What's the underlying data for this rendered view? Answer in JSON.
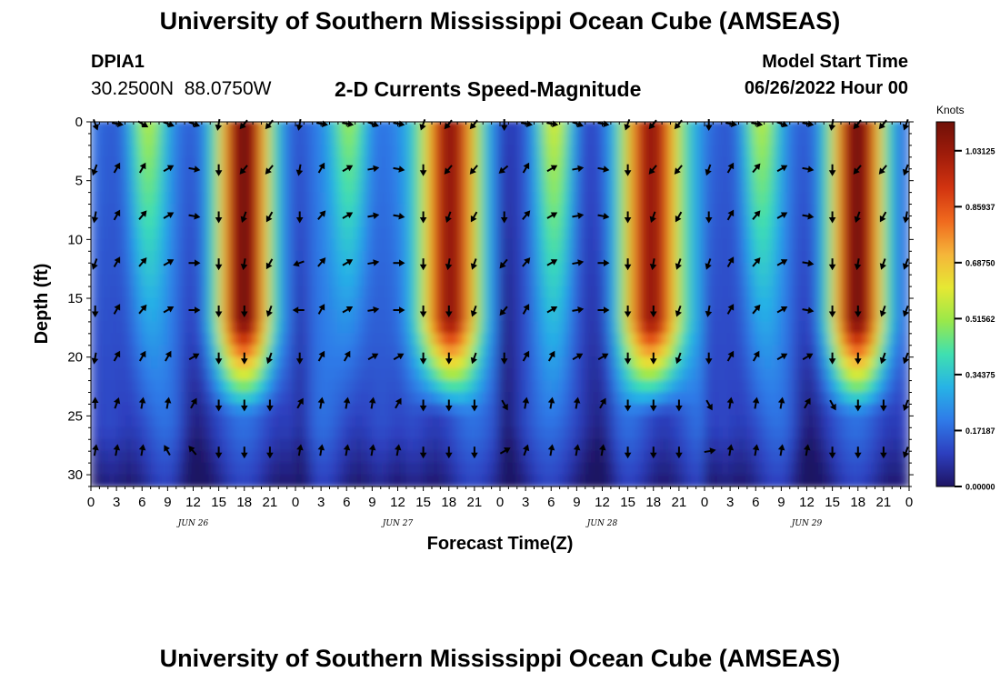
{
  "header": {
    "title": "University of Southern Mississippi Ocean Cube (AMSEAS)",
    "station_name": "DPIA1",
    "station_coords": "30.2500N  88.0750W",
    "plot_title": "2-D Currents Speed-Magnitude",
    "model_start_label": "Model Start Time",
    "model_start_value": "06/26/2022 Hour 00",
    "second_title": "University of Southern Mississippi Ocean Cube (AMSEAS)"
  },
  "colors": {
    "colormap": [
      "#1e1463",
      "#2d3fbf",
      "#2f7be8",
      "#27b3e6",
      "#3fe0b0",
      "#9ae84a",
      "#e6e833",
      "#f5b53a",
      "#f06a1e",
      "#d23410",
      "#a01c0a",
      "#701008"
    ]
  },
  "chart_data": {
    "type": "heatmap",
    "title": "2-D Currents Speed-Magnitude",
    "xlabel": "Forecast Time(Z)",
    "ylabel": "Depth (ft)",
    "x_ticks": [
      "0",
      "3",
      "6",
      "9",
      "12",
      "15",
      "18",
      "21",
      "0",
      "3",
      "6",
      "9",
      "12",
      "15",
      "18",
      "21",
      "0",
      "3",
      "6",
      "9",
      "12",
      "15",
      "18",
      "21",
      "0",
      "3",
      "6",
      "9",
      "12",
      "15",
      "18",
      "21",
      "0"
    ],
    "x_range_hours": [
      0,
      96
    ],
    "date_labels": [
      {
        "label": "JUN 26",
        "hour": 12
      },
      {
        "label": "JUN 27",
        "hour": 36
      },
      {
        "label": "JUN 28",
        "hour": 60
      },
      {
        "label": "JUN 29",
        "hour": 84
      }
    ],
    "y_ticks": [
      "0",
      "5",
      "10",
      "15",
      "20",
      "25",
      "30"
    ],
    "y_range_ft": [
      0,
      31
    ],
    "colorbar": {
      "label": "Knots",
      "min": 0.0,
      "max": 1.12,
      "ticks": [
        "0.00000",
        "0.17187",
        "0.34375",
        "0.51562",
        "0.68750",
        "0.85937",
        "1.03125"
      ]
    },
    "depth_levels_ft": [
      0,
      4,
      8,
      12,
      16,
      20,
      24,
      28
    ],
    "arrow_hours": [
      0.5,
      3,
      6,
      9,
      12,
      15,
      18,
      21,
      24.5,
      27,
      30,
      33,
      36,
      39,
      42,
      45,
      48.5,
      51,
      54,
      57,
      60,
      63,
      66,
      69,
      72.5,
      75,
      78,
      81,
      84,
      87,
      90,
      93,
      96
    ],
    "arrow_directions_deg": [
      [
        160,
        100,
        120,
        110,
        110,
        190,
        220,
        220,
        190,
        100,
        100,
        110,
        100,
        200,
        220,
        220,
        180,
        100,
        100,
        110,
        100,
        200,
        220,
        220,
        180,
        100,
        100,
        110,
        100,
        190,
        220,
        220,
        200
      ],
      [
        200,
        30,
        30,
        60,
        100,
        180,
        220,
        220,
        190,
        30,
        60,
        80,
        100,
        180,
        220,
        220,
        230,
        30,
        60,
        80,
        100,
        180,
        220,
        220,
        200,
        30,
        40,
        60,
        100,
        180,
        220,
        220,
        200
      ],
      [
        190,
        30,
        40,
        60,
        100,
        180,
        200,
        210,
        180,
        40,
        60,
        80,
        100,
        180,
        200,
        210,
        180,
        40,
        60,
        80,
        100,
        180,
        200,
        210,
        180,
        30,
        40,
        60,
        100,
        180,
        200,
        210,
        190
      ],
      [
        200,
        30,
        40,
        60,
        90,
        180,
        190,
        210,
        250,
        40,
        60,
        80,
        90,
        180,
        190,
        200,
        220,
        40,
        60,
        80,
        90,
        180,
        190,
        200,
        200,
        30,
        40,
        60,
        100,
        180,
        190,
        200,
        200
      ],
      [
        180,
        30,
        40,
        60,
        90,
        180,
        180,
        200,
        270,
        30,
        60,
        80,
        90,
        180,
        180,
        200,
        220,
        30,
        60,
        80,
        90,
        180,
        180,
        200,
        190,
        30,
        40,
        60,
        100,
        180,
        180,
        200,
        200
      ],
      [
        190,
        30,
        30,
        30,
        60,
        180,
        180,
        200,
        180,
        30,
        30,
        60,
        60,
        180,
        180,
        200,
        180,
        30,
        30,
        60,
        60,
        180,
        180,
        200,
        180,
        30,
        30,
        60,
        60,
        180,
        180,
        200,
        200
      ],
      [
        0,
        20,
        10,
        10,
        30,
        180,
        180,
        180,
        30,
        10,
        10,
        10,
        30,
        180,
        180,
        180,
        150,
        10,
        10,
        10,
        30,
        180,
        180,
        180,
        150,
        10,
        10,
        10,
        30,
        150,
        180,
        180,
        200
      ],
      [
        10,
        10,
        10,
        330,
        320,
        180,
        180,
        180,
        10,
        10,
        10,
        10,
        10,
        180,
        180,
        180,
        60,
        20,
        10,
        10,
        10,
        180,
        180,
        180,
        80,
        10,
        10,
        10,
        10,
        180,
        180,
        180,
        200
      ]
    ]
  }
}
